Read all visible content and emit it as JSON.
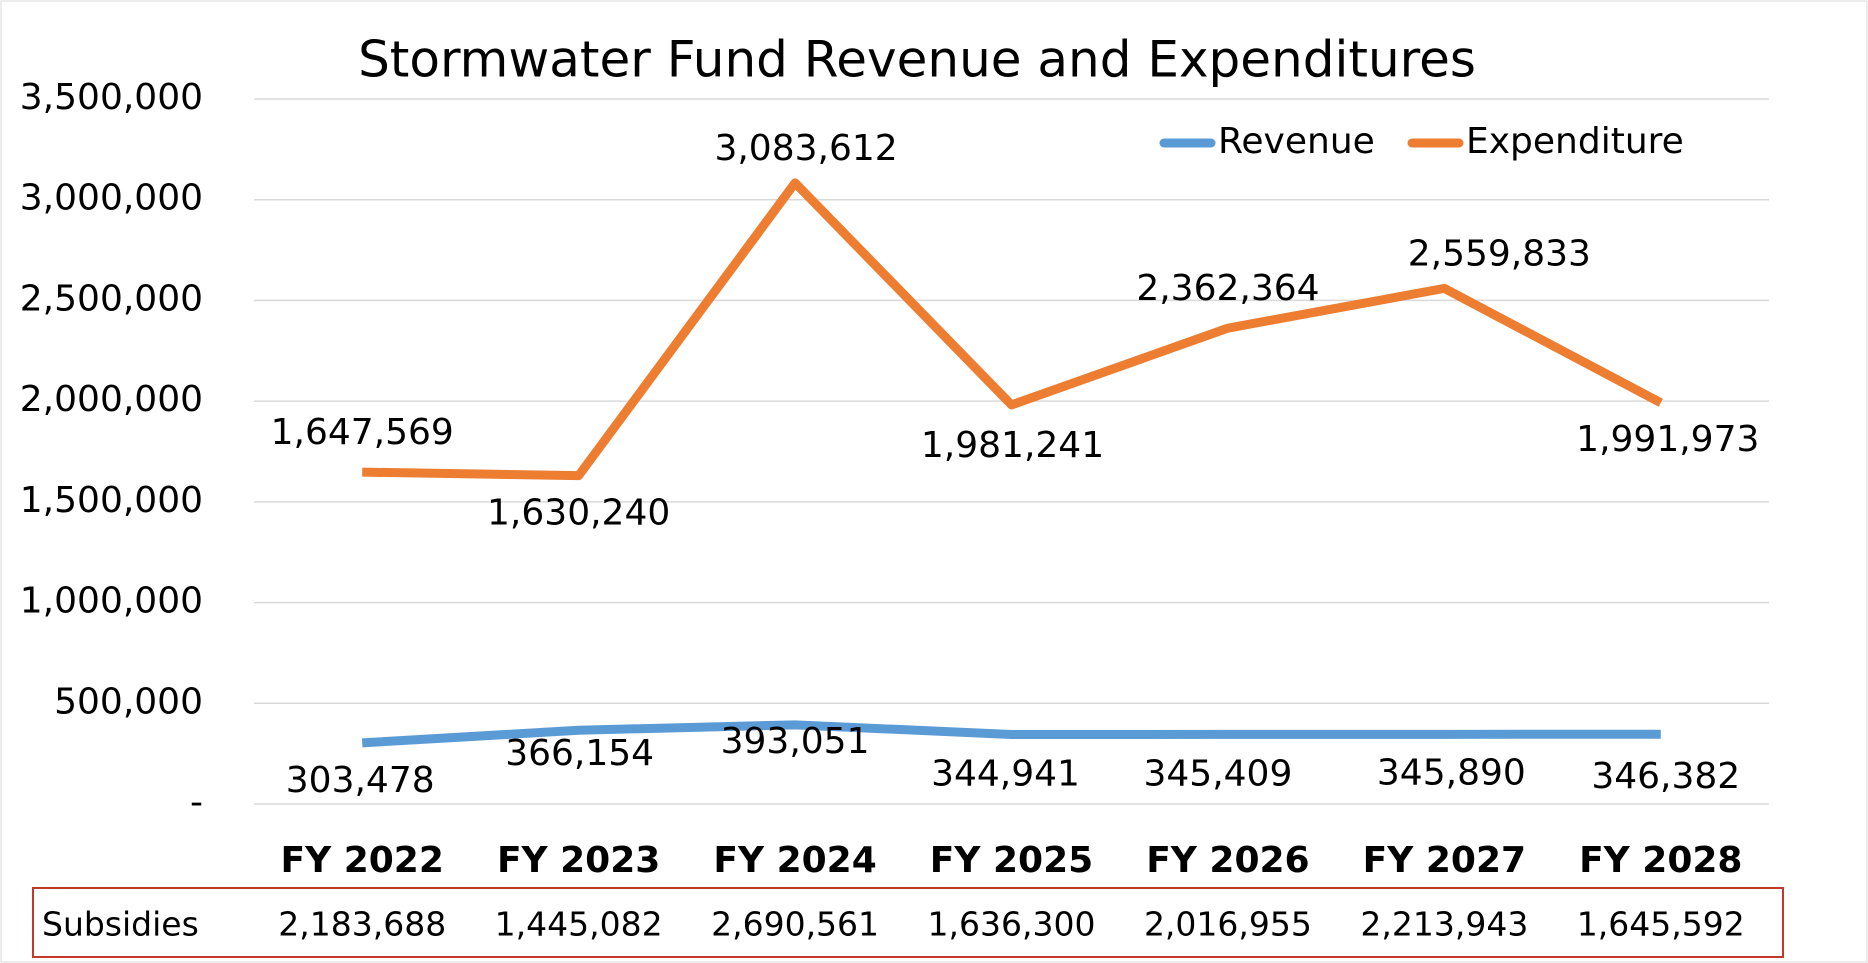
{
  "chart_data": {
    "type": "line",
    "title": "Stormwater Fund Revenue and Expenditures",
    "categories": [
      "FY 2022",
      "FY 2023",
      "FY 2024",
      "FY 2025",
      "FY 2026",
      "FY 2027",
      "FY 2028"
    ],
    "series": [
      {
        "name": "Revenue",
        "color": "#5b9bd5",
        "values": [
          303478,
          366154,
          393051,
          344941,
          345409,
          345890,
          346382
        ],
        "value_labels": [
          "303,478",
          "366,154",
          "393,051",
          "344,941",
          "345,409",
          "345,890",
          "346,382"
        ]
      },
      {
        "name": "Expenditure",
        "color": "#ed7d31",
        "values": [
          1647569,
          1630240,
          3083612,
          1981241,
          2362364,
          2559833,
          1991973
        ],
        "value_labels": [
          "1,647,569",
          "1,630,240",
          "3,083,612",
          "1,981,241",
          "2,362,364",
          "2,559,833",
          "1,991,973"
        ]
      }
    ],
    "ylim": [
      0,
      3500000
    ],
    "yticks": [
      {
        "value": 0,
        "label": "-"
      },
      {
        "value": 500000,
        "label": "500,000"
      },
      {
        "value": 1000000,
        "label": "1,000,000"
      },
      {
        "value": 1500000,
        "label": "1,500,000"
      },
      {
        "value": 2000000,
        "label": "2,000,000"
      },
      {
        "value": 2500000,
        "label": "2,500,000"
      },
      {
        "value": 3000000,
        "label": "3,000,000"
      },
      {
        "value": 3500000,
        "label": "3,500,000"
      }
    ],
    "grid": true,
    "legend": "top-right",
    "subsidies": {
      "name": "Subsidies",
      "color": "#c0392b",
      "values": [
        2183688,
        1445082,
        2690561,
        1636300,
        2016955,
        2213943,
        1645592
      ],
      "value_labels": [
        "2,183,688",
        "1,445,082",
        "2,690,561",
        "1,636,300",
        "2,016,955",
        "2,213,943",
        "1,645,592"
      ]
    }
  }
}
